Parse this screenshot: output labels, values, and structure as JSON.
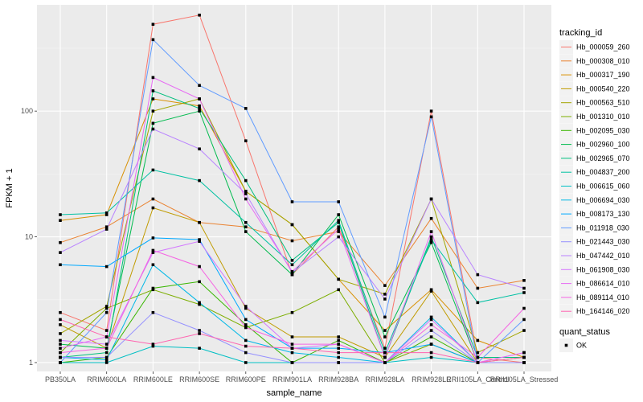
{
  "chart_data": {
    "type": "line",
    "xlabel": "sample_name",
    "ylabel": "FPKM + 1",
    "y_scale": "log10",
    "ylim": [
      0.85,
      700
    ],
    "y_ticks": [
      1,
      10,
      100
    ],
    "y_tick_labels": [
      "1",
      "10",
      "100"
    ],
    "grid": true,
    "legend_position": "right",
    "categories": [
      "PB350LA",
      "RRIM600LA",
      "RRIM600LE",
      "RRIM600SE",
      "RRIM600PE",
      "RRIM901LA",
      "RRIM928BA",
      "RRIM928LA",
      "RRIM928LE",
      "RRII105LA_Control",
      "RRII105LA_Stressed"
    ],
    "legend_title": "tracking_id",
    "series": [
      {
        "name": "Hb_000059_260",
        "color": "#F8766D",
        "values": [
          2.5,
          1.8,
          490,
          580,
          58,
          5.0,
          12,
          1.3,
          100,
          1.1,
          1.0
        ]
      },
      {
        "name": "Hb_000308_010",
        "color": "#EA8331",
        "values": [
          9.0,
          12,
          20,
          13,
          12,
          9.3,
          11,
          4.1,
          14,
          3.9,
          4.5
        ]
      },
      {
        "name": "Hb_000317_190",
        "color": "#D89000",
        "values": [
          13.5,
          15,
          125,
          110,
          23,
          12.5,
          4.6,
          1.8,
          3.8,
          1.5,
          1.1
        ]
      },
      {
        "name": "Hb_000540_220",
        "color": "#C09B00",
        "values": [
          2.0,
          1.3,
          17,
          13,
          2.7,
          1.6,
          1.6,
          1.1,
          3.7,
          1.0,
          1.0
        ]
      },
      {
        "name": "Hb_000563_510",
        "color": "#A3A500",
        "values": [
          1.7,
          2.8,
          100,
          125,
          23,
          12.5,
          4.6,
          3.5,
          20,
          1.2,
          1.8
        ]
      },
      {
        "name": "Hb_001310_010",
        "color": "#7CAE00",
        "values": [
          1.2,
          2.7,
          3.8,
          2.9,
          1.9,
          2.5,
          3.8,
          1.0,
          1.4,
          1.0,
          1.1
        ]
      },
      {
        "name": "Hb_002095_030",
        "color": "#39B600",
        "values": [
          1.0,
          1.1,
          3.9,
          4.4,
          2.0,
          1.0,
          1.5,
          1.0,
          1.6,
          1.0,
          1.0
        ]
      },
      {
        "name": "Hb_002960_100",
        "color": "#00BB4E",
        "values": [
          1.4,
          1.3,
          80,
          100,
          11,
          5.0,
          15,
          1.6,
          9.0,
          1.0,
          1.0
        ]
      },
      {
        "name": "Hb_002965_070",
        "color": "#00BF7D",
        "values": [
          1.1,
          1.2,
          145,
          105,
          28,
          6.5,
          13,
          1.1,
          10,
          1.1,
          1.1
        ]
      },
      {
        "name": "Hb_004837_200",
        "color": "#00C1A3",
        "values": [
          15,
          15.5,
          34,
          28,
          13,
          6.0,
          13.5,
          1.2,
          9.5,
          3.0,
          3.6
        ]
      },
      {
        "name": "Hb_006615_060",
        "color": "#00BFC4",
        "values": [
          1.0,
          1.0,
          1.35,
          1.3,
          1.0,
          1.0,
          1.0,
          1.0,
          1.1,
          1.0,
          1.0
        ]
      },
      {
        "name": "Hb_006694_030",
        "color": "#00B8E7",
        "values": [
          1.1,
          1.05,
          6.0,
          3.0,
          1.5,
          1.2,
          1.1,
          1.0,
          2.3,
          1.0,
          1.0
        ]
      },
      {
        "name": "Hb_008173_130",
        "color": "#00A9FF",
        "values": [
          6.0,
          5.8,
          9.8,
          9.5,
          2.2,
          1.3,
          1.3,
          1.2,
          1.4,
          1.0,
          1.0
        ]
      },
      {
        "name": "Hb_011918_030",
        "color": "#619CFF",
        "values": [
          1.0,
          2.5,
          370,
          160,
          105,
          19,
          19,
          2.3,
          90,
          1.0,
          2.2
        ]
      },
      {
        "name": "Hb_021443_030",
        "color": "#9590FF",
        "values": [
          1.1,
          1.1,
          2.5,
          1.8,
          1.2,
          1.0,
          1.0,
          1.0,
          1.8,
          1.0,
          1.0
        ]
      },
      {
        "name": "Hb_047442_010",
        "color": "#B983FF",
        "values": [
          7.5,
          11.5,
          72,
          50,
          22,
          5.2,
          10,
          3.2,
          20,
          5.0,
          3.9
        ]
      },
      {
        "name": "Hb_061908_030",
        "color": "#D376FF",
        "values": [
          1.5,
          1.4,
          7.5,
          9.2,
          2.8,
          1.3,
          1.4,
          1.0,
          2.2,
          1.0,
          1.2
        ]
      },
      {
        "name": "Hb_086614_010",
        "color": "#E76BF3",
        "values": [
          1.3,
          1.6,
          185,
          125,
          20,
          5.3,
          11.5,
          1.1,
          11,
          1.0,
          1.2
        ]
      },
      {
        "name": "Hb_089114_010",
        "color": "#F564E3",
        "values": [
          1.2,
          1.3,
          7.8,
          5.8,
          1.9,
          1.4,
          1.4,
          1.0,
          2.0,
          1.1,
          2.7
        ]
      },
      {
        "name": "Hb_164146_020",
        "color": "#FF64B0",
        "values": [
          2.2,
          1.6,
          1.4,
          1.7,
          1.35,
          1.3,
          1.2,
          1.2,
          1.2,
          1.0,
          1.1
        ]
      }
    ],
    "shape_legend_title": "quant_status",
    "shape_legend_items": [
      "OK"
    ]
  }
}
